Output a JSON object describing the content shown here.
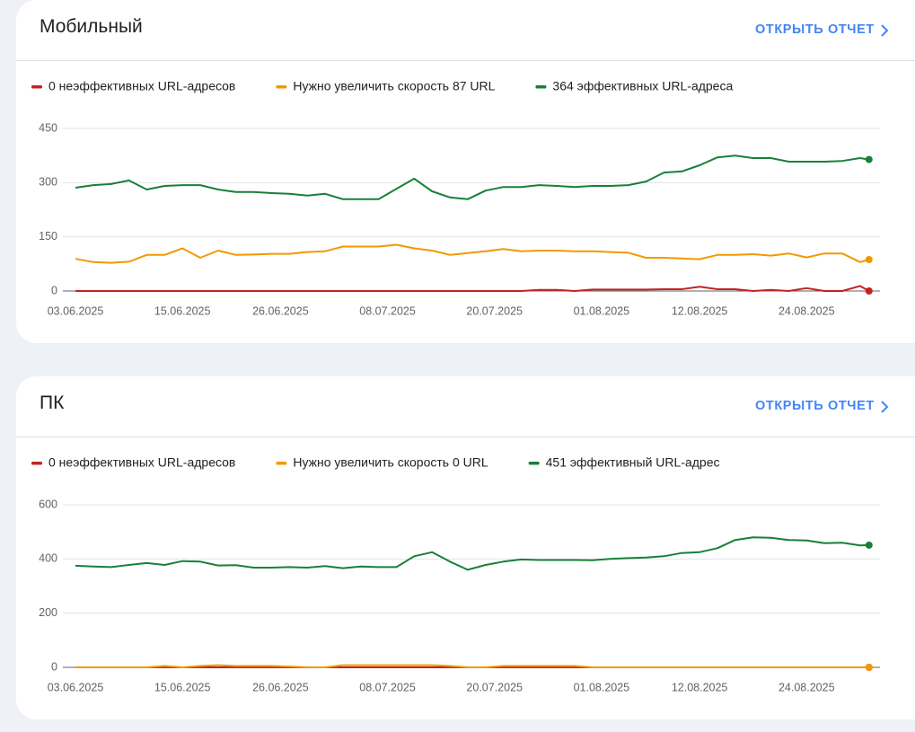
{
  "cards": [
    {
      "title": "Мобильный",
      "link": "ОТКРЫТЬ ОТЧЕТ"
    },
    {
      "title": "ПК",
      "link": "ОТКРЫТЬ ОТЧЕТ"
    }
  ],
  "chart_data": [
    {
      "type": "line",
      "x": [
        "03.06.2025",
        "05.06.2025",
        "07.06.2025",
        "09.06.2025",
        "11.06.2025",
        "13.06.2025",
        "15.06.2025",
        "17.06.2025",
        "19.06.2025",
        "21.06.2025",
        "23.06.2025",
        "25.06.2025",
        "27.06.2025",
        "29.06.2025",
        "01.07.2025",
        "03.07.2025",
        "05.07.2025",
        "07.07.2025",
        "09.07.2025",
        "11.07.2025",
        "13.07.2025",
        "15.07.2025",
        "17.07.2025",
        "19.07.2025",
        "21.07.2025",
        "23.07.2025",
        "25.07.2025",
        "27.07.2025",
        "29.07.2025",
        "31.07.2025",
        "02.08.2025",
        "04.08.2025",
        "06.08.2025",
        "08.08.2025",
        "10.08.2025",
        "12.08.2025",
        "14.08.2025",
        "16.08.2025",
        "18.08.2025",
        "20.08.2025",
        "22.08.2025",
        "24.08.2025",
        "26.08.2025",
        "28.08.2025",
        "30.08.2025",
        "31.08.2025"
      ],
      "xlim": [
        "03.06.2025",
        "01.09.2025"
      ],
      "xticks": [
        "03.06.2025",
        "15.06.2025",
        "26.06.2025",
        "08.07.2025",
        "20.07.2025",
        "01.08.2025",
        "12.08.2025",
        "24.08.2025"
      ],
      "ylim": [
        0,
        450
      ],
      "yticks": [
        0,
        150,
        300,
        450
      ],
      "grid": true,
      "series": [
        {
          "name": "0 неэффективных URL-адресов",
          "color": "#c5221f",
          "values": [
            0,
            0,
            0,
            0,
            0,
            0,
            0,
            0,
            0,
            0,
            0,
            0,
            0,
            0,
            0,
            0,
            0,
            0,
            0,
            0,
            0,
            0,
            0,
            0,
            0,
            0,
            3,
            3,
            0,
            4,
            4,
            4,
            4,
            5,
            5,
            12,
            5,
            5,
            0,
            3,
            0,
            8,
            0,
            0,
            14,
            0
          ]
        },
        {
          "name": "Нужно увеличить скорость 87 URL",
          "color": "#f29900",
          "values": [
            89,
            80,
            78,
            81,
            100,
            100,
            118,
            92,
            112,
            100,
            101,
            103,
            103,
            108,
            110,
            123,
            123,
            123,
            128,
            118,
            112,
            100,
            105,
            110,
            116,
            110,
            112,
            112,
            110,
            110,
            108,
            106,
            92,
            92,
            90,
            88,
            100,
            100,
            102,
            98,
            104,
            93,
            104,
            104,
            80,
            87
          ]
        },
        {
          "name": "364 эффективных URL-адреса",
          "color": "#188038",
          "values": [
            286,
            293,
            296,
            306,
            281,
            291,
            293,
            293,
            281,
            274,
            274,
            271,
            269,
            264,
            269,
            254,
            254,
            254,
            283,
            311,
            276,
            259,
            254,
            278,
            288,
            288,
            293,
            291,
            288,
            291,
            291,
            293,
            303,
            328,
            331,
            348,
            370,
            375,
            368,
            368,
            358,
            358,
            358,
            360,
            368,
            364
          ]
        }
      ]
    },
    {
      "type": "line",
      "x": [
        "03.06.2025",
        "05.06.2025",
        "07.06.2025",
        "09.06.2025",
        "11.06.2025",
        "13.06.2025",
        "15.06.2025",
        "17.06.2025",
        "19.06.2025",
        "21.06.2025",
        "23.06.2025",
        "25.06.2025",
        "27.06.2025",
        "29.06.2025",
        "01.07.2025",
        "03.07.2025",
        "05.07.2025",
        "07.07.2025",
        "09.07.2025",
        "11.07.2025",
        "13.07.2025",
        "15.07.2025",
        "17.07.2025",
        "19.07.2025",
        "21.07.2025",
        "23.07.2025",
        "25.07.2025",
        "27.07.2025",
        "29.07.2025",
        "31.07.2025",
        "02.08.2025",
        "04.08.2025",
        "06.08.2025",
        "08.08.2025",
        "10.08.2025",
        "12.08.2025",
        "14.08.2025",
        "16.08.2025",
        "18.08.2025",
        "20.08.2025",
        "22.08.2025",
        "24.08.2025",
        "26.08.2025",
        "28.08.2025",
        "30.08.2025",
        "31.08.2025"
      ],
      "xlim": [
        "03.06.2025",
        "01.09.2025"
      ],
      "xticks": [
        "03.06.2025",
        "15.06.2025",
        "26.06.2025",
        "08.07.2025",
        "20.07.2025",
        "01.08.2025",
        "12.08.2025",
        "24.08.2025"
      ],
      "ylim": [
        0,
        600
      ],
      "yticks": [
        0,
        200,
        400,
        600
      ],
      "grid": true,
      "series": [
        {
          "name": "0 неэффективных URL-адресов",
          "color": "#c5221f",
          "values": [
            0,
            0,
            0,
            0,
            0,
            0,
            0,
            0,
            0,
            0,
            0,
            0,
            0,
            0,
            0,
            0,
            0,
            0,
            0,
            0,
            0,
            0,
            0,
            0,
            0,
            0,
            0,
            0,
            0,
            0,
            0,
            0,
            0,
            0,
            0,
            0,
            0,
            0,
            0,
            0,
            0,
            0,
            0,
            0,
            0,
            0
          ]
        },
        {
          "name": "Нужно увеличить скорость 0 URL",
          "color": "#f29900",
          "values": [
            0,
            0,
            0,
            0,
            0,
            5,
            0,
            5,
            8,
            5,
            5,
            5,
            3,
            0,
            0,
            8,
            8,
            8,
            8,
            8,
            8,
            5,
            0,
            0,
            5,
            5,
            5,
            5,
            5,
            0,
            0,
            0,
            0,
            0,
            0,
            0,
            0,
            0,
            0,
            0,
            0,
            0,
            0,
            0,
            0,
            0
          ]
        },
        {
          "name": "451 эффективный URL-адрес",
          "color": "#188038",
          "values": [
            375,
            372,
            370,
            378,
            385,
            378,
            392,
            390,
            376,
            377,
            368,
            368,
            370,
            368,
            374,
            366,
            372,
            370,
            370,
            410,
            425,
            390,
            360,
            378,
            390,
            398,
            396,
            396,
            396,
            395,
            400,
            403,
            405,
            410,
            422,
            425,
            440,
            470,
            480,
            478,
            470,
            468,
            458,
            460,
            450,
            451
          ]
        }
      ]
    }
  ]
}
